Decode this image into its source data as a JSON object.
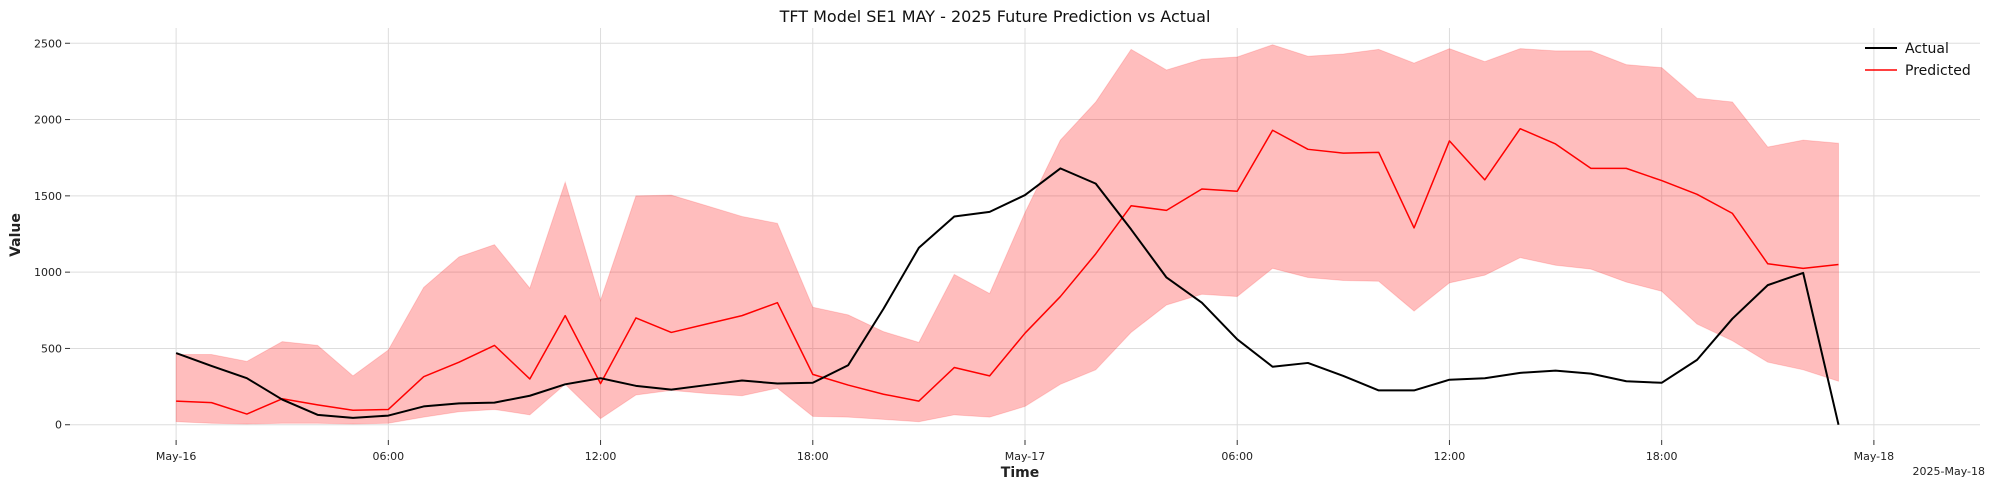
{
  "chart_data": {
    "type": "line",
    "title": "TFT Model SE1 MAY - 2025 Future Prediction vs Actual",
    "xlabel": "Time",
    "ylabel": "Value",
    "x_tick_labels": [
      "May-16",
      "06:00",
      "12:00",
      "18:00",
      "May-17",
      "06:00",
      "12:00",
      "18:00",
      "May-18"
    ],
    "x_offset_label": "2025-May-18",
    "y_ticks": [
      0,
      500,
      1000,
      1500,
      2000,
      2500
    ],
    "ylim": [
      -100,
      2600
    ],
    "grid": true,
    "legend_position": "top-right",
    "x_start": "2025-05-16 00:00",
    "x_end": "2025-05-17 23:00",
    "x_step": "1h",
    "series": [
      {
        "name": "Actual",
        "color": "#000000",
        "values": [
          470,
          385,
          305,
          165,
          65,
          45,
          60,
          120,
          140,
          145,
          190,
          265,
          305,
          255,
          230,
          260,
          290,
          270,
          275,
          390,
          760,
          1160,
          1365,
          1395,
          1505,
          1680,
          1580,
          1280,
          965,
          800,
          560,
          380,
          405,
          320,
          225,
          225,
          295,
          305,
          340,
          355,
          335,
          285,
          275,
          425,
          695,
          915,
          995,
          0
        ]
      },
      {
        "name": "Predicted",
        "color": "#ff0000",
        "values": [
          155,
          145,
          70,
          170,
          130,
          95,
          100,
          315,
          410,
          520,
          300,
          715,
          270,
          700,
          605,
          660,
          715,
          800,
          330,
          260,
          200,
          155,
          375,
          320,
          600,
          840,
          1120,
          1435,
          1405,
          1545,
          1530,
          1930,
          1805,
          1780,
          1785,
          1290,
          1860,
          1605,
          1940,
          1840,
          1680,
          1680,
          1600,
          1510,
          1385,
          1055,
          1025,
          1050
        ]
      }
    ],
    "band": {
      "color": "#ff0000",
      "opacity": 0.26,
      "upper": [
        460,
        460,
        415,
        545,
        520,
        320,
        490,
        900,
        1100,
        1180,
        895,
        1590,
        815,
        1500,
        1505,
        1435,
        1365,
        1320,
        770,
        720,
        610,
        540,
        985,
        860,
        1390,
        1865,
        2115,
        2460,
        2325,
        2395,
        2410,
        2490,
        2415,
        2430,
        2460,
        2370,
        2465,
        2380,
        2465,
        2450,
        2450,
        2360,
        2340,
        2140,
        2115,
        1820,
        1865,
        1845
      ],
      "lower": [
        20,
        10,
        5,
        10,
        10,
        5,
        10,
        50,
        85,
        100,
        65,
        265,
        40,
        195,
        225,
        205,
        190,
        240,
        55,
        50,
        35,
        20,
        65,
        50,
        120,
        265,
        360,
        605,
        785,
        855,
        840,
        1025,
        965,
        945,
        940,
        745,
        930,
        980,
        1095,
        1045,
        1020,
        935,
        875,
        660,
        550,
        410,
        360,
        285
      ]
    }
  }
}
